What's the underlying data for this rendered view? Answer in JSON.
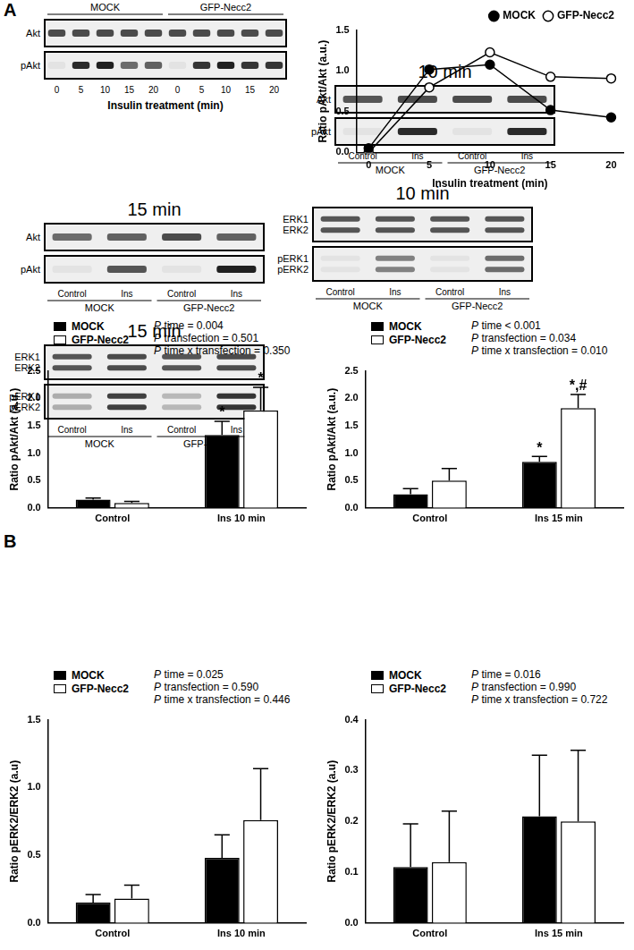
{
  "panels": [
    "A",
    "B"
  ],
  "blots": [
    {
      "groups": [
        {
          "label": "MOCK",
          "lanes": 5
        },
        {
          "label": "GFP-Necc2",
          "lanes": 5
        }
      ],
      "rows": [
        {
          "name": [
            "Akt"
          ],
          "bands": [
            0.75,
            0.75,
            0.75,
            0.75,
            0.75,
            0.75,
            0.75,
            0.75,
            0.75,
            0.75
          ]
        },
        {
          "name": [
            "pAkt"
          ],
          "bands": [
            0.05,
            0.9,
            0.95,
            0.6,
            0.65,
            0.05,
            0.85,
            0.95,
            0.85,
            0.85
          ]
        }
      ],
      "lane_labels": [
        "0",
        "5",
        "10",
        "15",
        "20",
        "0",
        "5",
        "10",
        "15",
        "20"
      ],
      "xlabel": "Insulin treatment (min)"
    },
    {
      "title": "10 min",
      "groups": [
        {
          "label": "MOCK",
          "lanes": 2
        },
        {
          "label": "GFP-Necc2",
          "lanes": 2
        }
      ],
      "rows": [
        {
          "name": [
            "Akt"
          ],
          "bands": [
            0.7,
            0.75,
            0.75,
            0.75
          ]
        },
        {
          "name": [
            "pAkt"
          ],
          "bands": [
            0.05,
            0.9,
            0.05,
            0.9
          ]
        }
      ],
      "lane_labels": [
        "Control",
        "Ins",
        "Control",
        "Ins"
      ]
    },
    {
      "title": "15 min",
      "groups": [
        {
          "label": "MOCK",
          "lanes": 2
        },
        {
          "label": "GFP-Necc2",
          "lanes": 2
        }
      ],
      "rows": [
        {
          "name": [
            "Akt"
          ],
          "bands": [
            0.6,
            0.65,
            0.75,
            0.65
          ]
        },
        {
          "name": [
            "pAkt"
          ],
          "bands": [
            0.05,
            0.7,
            0.05,
            0.95
          ]
        }
      ],
      "lane_labels": [
        "Control",
        "Ins",
        "Control",
        "Ins"
      ]
    },
    {
      "title": "10 min",
      "groups": [
        {
          "label": "MOCK",
          "lanes": 2
        },
        {
          "label": "GFP-Necc2",
          "lanes": 2
        }
      ],
      "rows": [
        {
          "name": [
            "ERK1",
            "ERK2"
          ],
          "bands": [
            0.7,
            0.7,
            0.7,
            0.7
          ]
        },
        {
          "name": [
            "pERK1",
            "pERK2"
          ],
          "bands": [
            0.05,
            0.5,
            0.05,
            0.6
          ]
        }
      ],
      "lane_labels": [
        "Control",
        "Ins",
        "Control",
        "Ins"
      ]
    },
    {
      "title": "15 min",
      "groups": [
        {
          "label": "MOCK",
          "lanes": 2
        },
        {
          "label": "GFP-Necc2",
          "lanes": 2
        }
      ],
      "rows": [
        {
          "name": [
            "ERK1",
            "ERK2"
          ],
          "bands": [
            0.7,
            0.75,
            0.7,
            0.75
          ]
        },
        {
          "name": [
            "pERK1",
            "pERK2"
          ],
          "bands": [
            0.3,
            0.8,
            0.25,
            0.85
          ]
        }
      ],
      "lane_labels": [
        "Control",
        "Ins",
        "Control",
        "Ins"
      ]
    }
  ],
  "chart_data": [
    {
      "type": "line",
      "x": [
        0,
        5,
        10,
        15,
        20
      ],
      "xlabel": "Insulin treatment (min)",
      "ylabel": "Ratio pAkt/Akt (a.u.)",
      "xlim": [
        -1,
        21
      ],
      "xticks": [
        0,
        5,
        10,
        15,
        20
      ],
      "ylim": [
        0,
        1.5
      ],
      "yticks": [
        {
          "value": 0,
          "label": "0.0"
        },
        {
          "value": 0.5,
          "label": "0.5"
        },
        {
          "value": 1,
          "label": "1.0"
        },
        {
          "value": 1.5,
          "label": "1.5"
        }
      ],
      "legend": "upper right",
      "grid": false,
      "series": [
        {
          "name": "MOCK",
          "color": "#000000",
          "marker": "filled",
          "values": [
            0.05,
            1.02,
            1.08,
            0.52,
            0.43
          ]
        },
        {
          "name": "GFP-Necc2",
          "color": "#000000",
          "marker": "open",
          "values": [
            0.0,
            0.8,
            1.23,
            0.93,
            0.91
          ]
        }
      ]
    },
    {
      "type": "bar",
      "categories": [
        "Control",
        "Ins 10 min"
      ],
      "ylabel": "Ratio pAkt/Akt (a.u.)",
      "ylim": [
        0,
        2.5
      ],
      "yticks": [
        {
          "value": 0,
          "label": "0.0"
        },
        {
          "value": 0.5,
          "label": "0.5"
        },
        {
          "value": 1,
          "label": "1.0"
        },
        {
          "value": 1.5,
          "label": "1.5"
        },
        {
          "value": 2,
          "label": "2.0"
        },
        {
          "value": 2.5,
          "label": "2.5"
        }
      ],
      "legend": "upper left",
      "grid": false,
      "stats": [
        "P time = 0.004",
        "P transfection = 0.501",
        "P time x transfection = 0.350"
      ],
      "annotations": [
        {
          "series": 0,
          "index": 1,
          "text": "*"
        },
        {
          "series": 1,
          "index": 1,
          "text": "*"
        }
      ],
      "series": [
        {
          "name": "MOCK",
          "color": "#000000",
          "values": [
            0.15,
            1.33
          ],
          "errors": [
            0.03,
            0.25
          ]
        },
        {
          "name": "GFP-Necc2",
          "color": "#ffffff",
          "values": [
            0.09,
            1.78
          ],
          "errors": [
            0.03,
            0.42
          ]
        }
      ]
    },
    {
      "type": "bar",
      "categories": [
        "Control",
        "Ins 15 min"
      ],
      "ylabel": "Ratio pAkt/Akt (a.u.)",
      "ylim": [
        0,
        2.5
      ],
      "yticks": [
        {
          "value": 0,
          "label": "0.0"
        },
        {
          "value": 0.5,
          "label": "0.5"
        },
        {
          "value": 1,
          "label": "1.0"
        },
        {
          "value": 1.5,
          "label": "1.5"
        },
        {
          "value": 2,
          "label": "2.0"
        },
        {
          "value": 2.5,
          "label": "2.5"
        }
      ],
      "legend": "upper left",
      "grid": false,
      "stats": [
        "P time < 0.001",
        "P transfection = 0.034",
        "P time x transfection = 0.010"
      ],
      "annotations": [
        {
          "series": 0,
          "index": 1,
          "text": "*"
        },
        {
          "series": 1,
          "index": 1,
          "text": "*,#"
        }
      ],
      "series": [
        {
          "name": "MOCK",
          "color": "#000000",
          "values": [
            0.25,
            0.84
          ],
          "errors": [
            0.1,
            0.1
          ]
        },
        {
          "name": "GFP-Necc2",
          "color": "#ffffff",
          "values": [
            0.5,
            1.82
          ],
          "errors": [
            0.22,
            0.25
          ]
        }
      ]
    },
    {
      "type": "bar",
      "categories": [
        "Control",
        "Ins 10 min"
      ],
      "ylabel": "Ratio pERK2/ERK2 (a.u)",
      "ylim": [
        0,
        1.5
      ],
      "yticks": [
        {
          "value": 0,
          "label": "0.0"
        },
        {
          "value": 0.5,
          "label": "0.5"
        },
        {
          "value": 1,
          "label": "1.0"
        },
        {
          "value": 1.5,
          "label": "1.5"
        }
      ],
      "legend": "upper left",
      "grid": false,
      "stats": [
        "P time = 0.025",
        "P transfection = 0.590",
        "P time x transfection = 0.446"
      ],
      "series": [
        {
          "name": "MOCK",
          "color": "#000000",
          "values": [
            0.15,
            0.48
          ],
          "errors": [
            0.06,
            0.17
          ]
        },
        {
          "name": "GFP-Necc2",
          "color": "#ffffff",
          "values": [
            0.18,
            0.76
          ],
          "errors": [
            0.1,
            0.38
          ]
        }
      ]
    },
    {
      "type": "bar",
      "categories": [
        "Control",
        "Ins 15 min"
      ],
      "ylabel": "Ratio pERK2/ERK2 (a.u)",
      "ylim": [
        0,
        0.4
      ],
      "yticks": [
        {
          "value": 0,
          "label": "0.0"
        },
        {
          "value": 0.1,
          "label": "0.1"
        },
        {
          "value": 0.2,
          "label": "0.2"
        },
        {
          "value": 0.3,
          "label": "0.3"
        },
        {
          "value": 0.4,
          "label": "0.4"
        }
      ],
      "legend": "upper left",
      "grid": false,
      "stats": [
        "P time = 0.016",
        "P transfection = 0.990",
        "P time x transfection = 0.722"
      ],
      "series": [
        {
          "name": "MOCK",
          "color": "#000000",
          "values": [
            0.11,
            0.21
          ],
          "errors": [
            0.085,
            0.12
          ]
        },
        {
          "name": "GFP-Necc2",
          "color": "#ffffff",
          "values": [
            0.12,
            0.2
          ],
          "errors": [
            0.1,
            0.14
          ]
        }
      ]
    }
  ]
}
